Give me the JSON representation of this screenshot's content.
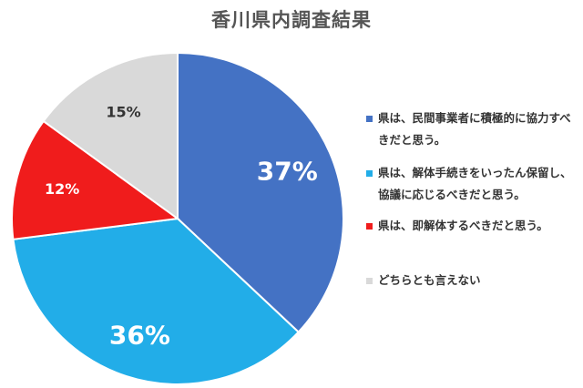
{
  "chart_data": {
    "type": "pie",
    "title": "香川県内調査結果",
    "categories": [
      "県は、民間事業者に積極的に協力すべきだと思う。",
      "県は、解体手続きをいったん保留し、協議に応じるべきだと思う。",
      "県は、即解体するべきだと思う。",
      "どちらとも言えない"
    ],
    "values": [
      37,
      36,
      12,
      15
    ],
    "data_labels": [
      "37%",
      "36%",
      "12%",
      "15%"
    ],
    "colors": [
      "#4472c4",
      "#22ade8",
      "#f01c1c",
      "#d9d9d9"
    ],
    "label_colors": [
      "#ffffff",
      "#ffffff",
      "#ffffff",
      "#333333"
    ],
    "legend_position": "right"
  }
}
